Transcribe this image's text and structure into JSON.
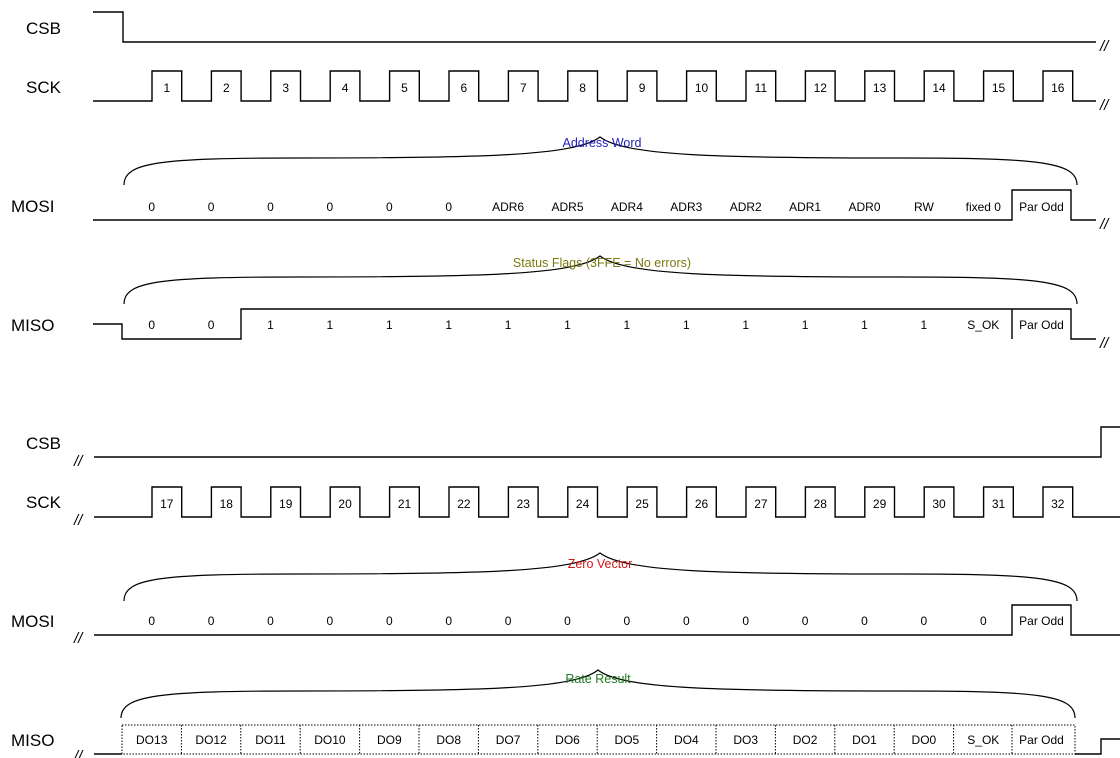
{
  "frames": [
    {
      "signals": [
        "CSB",
        "SCK",
        "MOSI",
        "MISO"
      ],
      "clock_labels": [
        "1",
        "2",
        "3",
        "4",
        "5",
        "6",
        "7",
        "8",
        "9",
        "10",
        "11",
        "12",
        "13",
        "14",
        "15",
        "16"
      ],
      "mosi": {
        "title": "Address Word",
        "title_color": "#1f1fbf",
        "cells": [
          "0",
          "0",
          "0",
          "0",
          "0",
          "0",
          "ADR6",
          "ADR5",
          "ADR4",
          "ADR3",
          "ADR2",
          "ADR1",
          "ADR0",
          "RW",
          "fixed 0",
          "Par Odd"
        ]
      },
      "miso": {
        "title": "Status Flags (3FFE = No errors)",
        "title_color": "#7a7a10",
        "cells": [
          "0",
          "0",
          "1",
          "1",
          "1",
          "1",
          "1",
          "1",
          "1",
          "1",
          "1",
          "1",
          "1",
          "1",
          "S_OK",
          "Par Odd"
        ]
      }
    },
    {
      "signals": [
        "CSB",
        "SCK",
        "MOSI",
        "MISO"
      ],
      "clock_labels": [
        "17",
        "18",
        "19",
        "20",
        "21",
        "22",
        "23",
        "24",
        "25",
        "26",
        "27",
        "28",
        "29",
        "30",
        "31",
        "32"
      ],
      "mosi": {
        "title": "Zero Vector",
        "title_color": "#d01818",
        "cells": [
          "0",
          "0",
          "0",
          "0",
          "0",
          "0",
          "0",
          "0",
          "0",
          "0",
          "0",
          "0",
          "0",
          "0",
          "0",
          "Par Odd"
        ]
      },
      "miso": {
        "title": "Rate Result",
        "title_color": "#1f7a1f",
        "cells": [
          "DO13",
          "DO12",
          "DO11",
          "DO10",
          "DO9",
          "DO8",
          "DO7",
          "DO6",
          "DO5",
          "DO4",
          "DO3",
          "DO2",
          "DO1",
          "DO0",
          "S_OK",
          "Par Odd"
        ]
      }
    }
  ],
  "break_mark": "//"
}
